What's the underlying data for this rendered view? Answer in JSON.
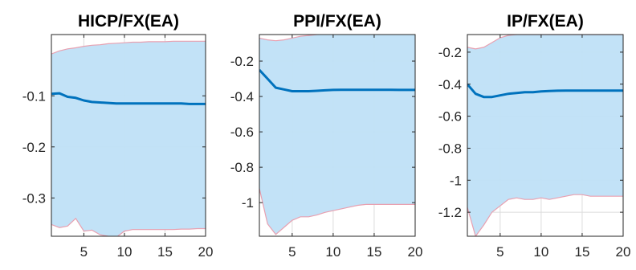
{
  "colors": {
    "band": "#bfe0f7",
    "band_edge": "#e8a0b0",
    "median": "#0072bd",
    "axis": "#262626"
  },
  "chart_data": [
    {
      "type": "line",
      "title": "HICP/FX(EA)",
      "xlim": [
        1,
        20
      ],
      "ylim": [
        -0.375,
        0.02
      ],
      "xticks": [
        5,
        10,
        15,
        20
      ],
      "yticks": [
        -0.1,
        -0.2,
        -0.3
      ],
      "xtick_labels": [
        "5",
        "10",
        "15",
        "20"
      ],
      "ytick_labels": [
        "-0.1",
        "-0.2",
        "-0.3"
      ],
      "grid": true,
      "x": [
        1,
        2,
        3,
        4,
        5,
        6,
        7,
        8,
        9,
        10,
        11,
        12,
        13,
        14,
        15,
        16,
        17,
        18,
        19,
        20
      ],
      "series": [
        {
          "role": "median",
          "values": [
            -0.096,
            -0.095,
            -0.102,
            -0.104,
            -0.109,
            -0.112,
            -0.113,
            -0.114,
            -0.115,
            -0.115,
            -0.115,
            -0.115,
            -0.115,
            -0.115,
            -0.115,
            -0.115,
            -0.115,
            -0.116,
            -0.116,
            -0.116
          ]
        },
        {
          "role": "upper",
          "values": [
            -0.018,
            -0.012,
            -0.008,
            -0.006,
            -0.003,
            -0.001,
            0.0,
            0.002,
            0.003,
            0.004,
            0.005,
            0.005,
            0.006,
            0.006,
            0.006,
            0.007,
            0.007,
            0.007,
            0.007,
            0.007
          ]
        },
        {
          "role": "lower",
          "values": [
            -0.352,
            -0.358,
            -0.355,
            -0.34,
            -0.365,
            -0.363,
            -0.372,
            -0.375,
            -0.377,
            -0.365,
            -0.362,
            -0.362,
            -0.362,
            -0.362,
            -0.362,
            -0.362,
            -0.361,
            -0.361,
            -0.36,
            -0.36
          ]
        }
      ]
    },
    {
      "type": "line",
      "title": "PPI/FX(EA)",
      "xlim": [
        1,
        20
      ],
      "ylim": [
        -1.19,
        -0.05
      ],
      "xticks": [
        5,
        10,
        15,
        20
      ],
      "yticks": [
        -0.2,
        -0.4,
        -0.6,
        -0.8,
        -1.0
      ],
      "xtick_labels": [
        "5",
        "10",
        "15",
        "20"
      ],
      "ytick_labels": [
        "-0.2",
        "-0.4",
        "-0.6",
        "-0.8",
        "-1"
      ],
      "grid": true,
      "x": [
        1,
        2,
        3,
        4,
        5,
        6,
        7,
        8,
        9,
        10,
        11,
        12,
        13,
        14,
        15,
        16,
        17,
        18,
        19,
        20
      ],
      "series": [
        {
          "role": "median",
          "values": [
            -0.25,
            -0.3,
            -0.35,
            -0.36,
            -0.37,
            -0.37,
            -0.37,
            -0.368,
            -0.365,
            -0.363,
            -0.362,
            -0.362,
            -0.362,
            -0.362,
            -0.362,
            -0.362,
            -0.362,
            -0.363,
            -0.363,
            -0.363
          ]
        },
        {
          "role": "upper",
          "values": [
            -0.07,
            -0.08,
            -0.085,
            -0.08,
            -0.07,
            -0.06,
            -0.055,
            -0.05,
            -0.048,
            -0.047,
            -0.046,
            -0.046,
            -0.046,
            -0.046,
            -0.046,
            -0.046,
            -0.046,
            -0.046,
            -0.046,
            -0.046
          ]
        },
        {
          "role": "lower",
          "values": [
            -0.92,
            -1.12,
            -1.18,
            -1.14,
            -1.1,
            -1.08,
            -1.08,
            -1.07,
            -1.055,
            -1.045,
            -1.035,
            -1.025,
            -1.015,
            -1.01,
            -1.01,
            -1.01,
            -1.01,
            -1.01,
            -1.01,
            -1.01
          ]
        }
      ]
    },
    {
      "type": "line",
      "title": "IP/FX(EA)",
      "xlim": [
        1,
        20
      ],
      "ylim": [
        -1.35,
        -0.09
      ],
      "xticks": [
        5,
        10,
        15,
        20
      ],
      "yticks": [
        -0.2,
        -0.4,
        -0.6,
        -0.8,
        -1.0,
        -1.2
      ],
      "xtick_labels": [
        "5",
        "10",
        "15",
        "20"
      ],
      "ytick_labels": [
        "-0.2",
        "-0.4",
        "-0.6",
        "-0.8",
        "-1",
        "-1.2"
      ],
      "grid": true,
      "x": [
        1,
        2,
        3,
        4,
        5,
        6,
        7,
        8,
        9,
        10,
        11,
        12,
        13,
        14,
        15,
        16,
        17,
        18,
        19,
        20
      ],
      "series": [
        {
          "role": "median",
          "values": [
            -0.4,
            -0.46,
            -0.48,
            -0.48,
            -0.47,
            -0.46,
            -0.455,
            -0.45,
            -0.45,
            -0.445,
            -0.443,
            -0.441,
            -0.44,
            -0.44,
            -0.44,
            -0.44,
            -0.44,
            -0.44,
            -0.44,
            -0.44
          ]
        },
        {
          "role": "upper",
          "values": [
            -0.17,
            -0.18,
            -0.17,
            -0.14,
            -0.11,
            -0.095,
            -0.09,
            -0.09,
            -0.09,
            -0.09,
            -0.09,
            -0.09,
            -0.09,
            -0.09,
            -0.09,
            -0.09,
            -0.09,
            -0.09,
            -0.09,
            -0.09
          ]
        },
        {
          "role": "lower",
          "values": [
            -1.17,
            -1.35,
            -1.28,
            -1.2,
            -1.16,
            -1.12,
            -1.11,
            -1.12,
            -1.12,
            -1.11,
            -1.12,
            -1.11,
            -1.1,
            -1.09,
            -1.09,
            -1.1,
            -1.1,
            -1.1,
            -1.1,
            -1.1
          ]
        }
      ]
    }
  ]
}
